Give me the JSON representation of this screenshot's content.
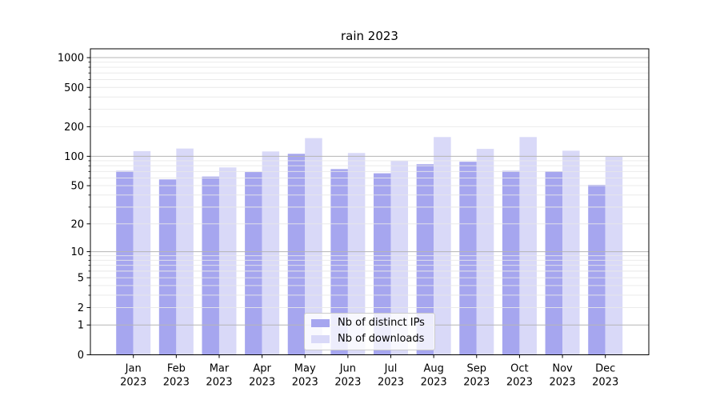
{
  "chart_data": {
    "type": "bar",
    "title": "rain 2023",
    "categories": [
      "Jan",
      "Feb",
      "Mar",
      "Apr",
      "May",
      "Jun",
      "Jul",
      "Aug",
      "Sep",
      "Oct",
      "Nov",
      "Dec"
    ],
    "category_year": "2023",
    "series": [
      {
        "name": "Nb of distinct IPs",
        "color": "#a6a6ef",
        "values": [
          71,
          58,
          62,
          69,
          106,
          74,
          67,
          83,
          88,
          71,
          70,
          51
        ]
      },
      {
        "name": "Nb of downloads",
        "color": "#d9d9f8",
        "values": [
          113,
          120,
          77,
          112,
          153,
          108,
          90,
          157,
          119,
          157,
          114,
          99
        ]
      }
    ],
    "y_axis": {
      "scale": "log1p",
      "tick_labels": [
        0,
        1,
        2,
        5,
        10,
        20,
        50,
        100,
        200,
        500,
        1000
      ],
      "range": [
        0,
        1270
      ]
    },
    "grid": {
      "major_color": "#b5b5b5",
      "minor_color": "#e8e8e8"
    },
    "legend_position": "inside-bottom-center",
    "axis_color": "#000000",
    "background": "#ffffff"
  }
}
